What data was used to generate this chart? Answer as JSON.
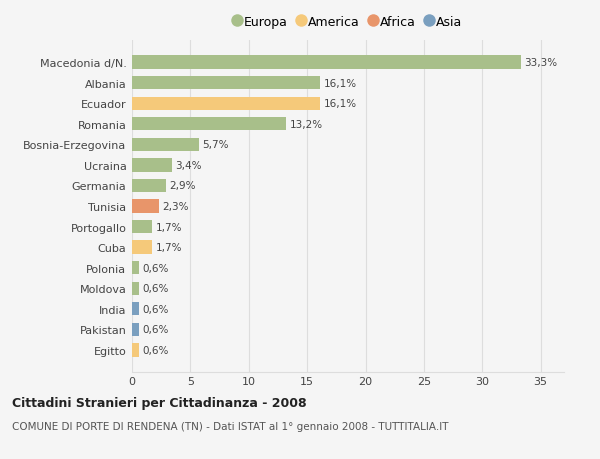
{
  "categories": [
    "Macedonia d/N.",
    "Albania",
    "Ecuador",
    "Romania",
    "Bosnia-Erzegovina",
    "Ucraina",
    "Germania",
    "Tunisia",
    "Portogallo",
    "Cuba",
    "Polonia",
    "Moldova",
    "India",
    "Pakistan",
    "Egitto"
  ],
  "values": [
    33.3,
    16.1,
    16.1,
    13.2,
    5.7,
    3.4,
    2.9,
    2.3,
    1.7,
    1.7,
    0.6,
    0.6,
    0.6,
    0.6,
    0.6
  ],
  "labels": [
    "33,3%",
    "16,1%",
    "16,1%",
    "13,2%",
    "5,7%",
    "3,4%",
    "2,9%",
    "2,3%",
    "1,7%",
    "1,7%",
    "0,6%",
    "0,6%",
    "0,6%",
    "0,6%",
    "0,6%"
  ],
  "colors": [
    "#a8bf8a",
    "#a8bf8a",
    "#f5c97a",
    "#a8bf8a",
    "#a8bf8a",
    "#a8bf8a",
    "#a8bf8a",
    "#e8956a",
    "#a8bf8a",
    "#f5c97a",
    "#a8bf8a",
    "#a8bf8a",
    "#7a9fbf",
    "#7a9fbf",
    "#f5c97a"
  ],
  "legend_labels": [
    "Europa",
    "America",
    "Africa",
    "Asia"
  ],
  "legend_colors": [
    "#a8bf8a",
    "#f5c97a",
    "#e8956a",
    "#7a9fbf"
  ],
  "title1": "Cittadini Stranieri per Cittadinanza - 2008",
  "title2": "COMUNE DI PORTE DI RENDENA (TN) - Dati ISTAT al 1° gennaio 2008 - TUTTITALIA.IT",
  "xlim": [
    0,
    37
  ],
  "xticks": [
    0,
    5,
    10,
    15,
    20,
    25,
    30,
    35
  ],
  "background_color": "#f5f5f5",
  "grid_color": "#dddddd",
  "bar_height": 0.65
}
